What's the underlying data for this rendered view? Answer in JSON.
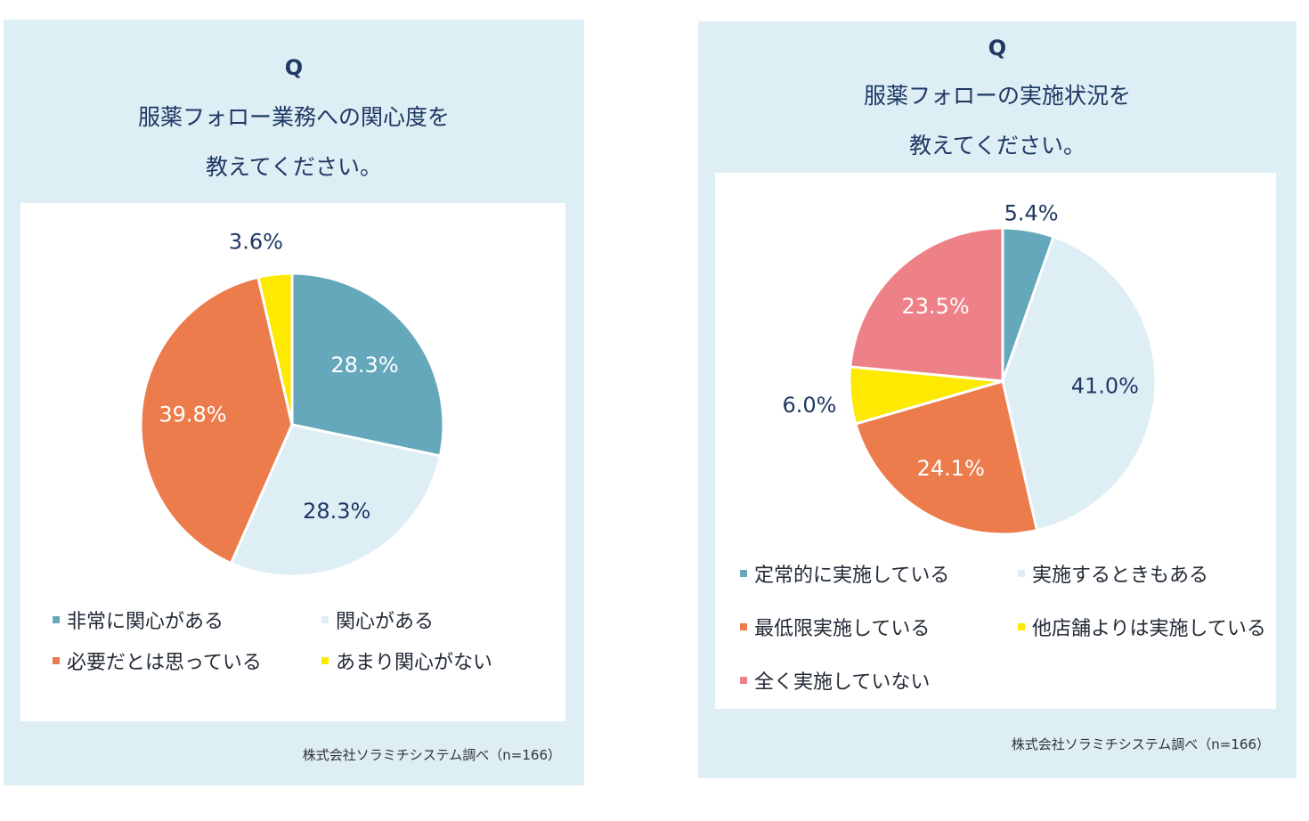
{
  "chart_data": [
    {
      "type": "pie",
      "q_label": "Q",
      "title_lines": [
        "服薬フォロー業務への関心度を",
        "教えてください。"
      ],
      "categories": [
        "非常に関心がある",
        "関心がある",
        "必要だとは思っている",
        "あまり関心がない"
      ],
      "values": [
        28.3,
        28.3,
        39.8,
        3.6
      ],
      "value_labels": [
        "28.3%",
        "28.3%",
        "39.8%",
        "3.6%"
      ],
      "colors": [
        "#65a8bc",
        "#ddeef5",
        "#ec7c4c",
        "#fde901"
      ],
      "label_colors": [
        "#ffffff",
        "#1f3864",
        "#ffffff",
        "#1f3864"
      ],
      "legend_placement": "bottom",
      "source": "株式会社ソラミチシステム調べ（n=166）"
    },
    {
      "type": "pie",
      "q_label": "Q",
      "title_lines": [
        "服薬フォローの実施状況を",
        "教えてください。"
      ],
      "categories": [
        "定常的に実施している",
        "実施するときもある",
        "最低限実施している",
        "他店舗よりは実施している",
        "全く実施していない"
      ],
      "values": [
        5.4,
        41.0,
        24.1,
        6.0,
        23.5
      ],
      "value_labels": [
        "5.4%",
        "41.0%",
        "24.1%",
        "6.0%",
        "23.5%"
      ],
      "colors": [
        "#65a8bc",
        "#ddeef5",
        "#ec7c4c",
        "#fde901",
        "#ee8087"
      ],
      "label_colors": [
        "#1f3864",
        "#1f3864",
        "#ffffff",
        "#1f3864",
        "#ffffff"
      ],
      "legend_placement": "bottom",
      "source": "株式会社ソラミチシステム調べ（n=166）"
    }
  ]
}
